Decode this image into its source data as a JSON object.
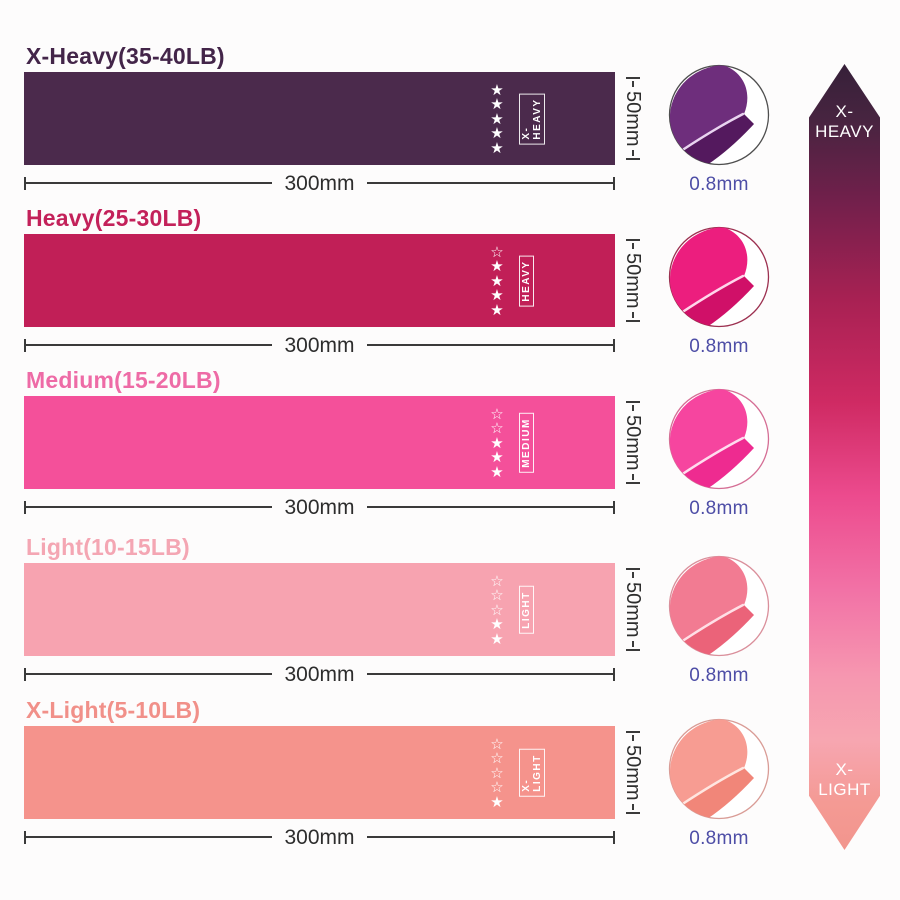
{
  "page": {
    "background_color": "#fdfcfc",
    "dimension_text_color": "#2d2d2d",
    "thickness_text_color": "#4d4da6"
  },
  "bands": [
    {
      "title": "X-Heavy(35-40LB)",
      "label": "X-HEAVY",
      "stars": "★\n★\n★\n★\n★",
      "stars_filled": 5,
      "width_label": "300mm",
      "height_label": "50mm",
      "thickness_label": "0.8mm",
      "band_color": "#4b2a4c",
      "title_color": "#432549",
      "swatch": {
        "main": "#6e2e7c",
        "under": "#54195e",
        "edge": "#e9d4f0",
        "ring": "#4e4e4e"
      }
    },
    {
      "title": "Heavy(25-30LB)",
      "label": "HEAVY",
      "stars": "☆\n★\n★\n★\n★",
      "stars_filled": 4,
      "width_label": "300mm",
      "height_label": "50mm",
      "thickness_label": "0.8mm",
      "band_color": "#c11f57",
      "title_color": "#c3215a",
      "swatch": {
        "main": "#ec1e7e",
        "under": "#d01068",
        "edge": "#ffd6eb",
        "ring": "#9c3050"
      }
    },
    {
      "title": "Medium(15-20LB)",
      "label": "MEDIUM",
      "stars": "☆\n☆\n★\n★\n★",
      "stars_filled": 3,
      "width_label": "300mm",
      "height_label": "50mm",
      "thickness_label": "0.8mm",
      "band_color": "#f4509a",
      "title_color": "#ee6ba6",
      "swatch": {
        "main": "#f6459f",
        "under": "#ee2b90",
        "edge": "#ffdcee",
        "ring": "#d56e95"
      }
    },
    {
      "title": "Light(10-15LB)",
      "label": "LIGHT",
      "stars": "☆\n☆\n☆\n★\n★",
      "stars_filled": 2,
      "width_label": "300mm",
      "height_label": "50mm",
      "thickness_label": "0.8mm",
      "band_color": "#f7a3b0",
      "title_color": "#f4a6b3",
      "swatch": {
        "main": "#f27b92",
        "under": "#eb6379",
        "edge": "#ffdfe6",
        "ring": "#da8f9b"
      }
    },
    {
      "title": "X-Light(5-10LB)",
      "label": "X-LIGHT",
      "stars": "☆\n☆\n☆\n☆\n★",
      "stars_filled": 1,
      "width_label": "300mm",
      "height_label": "50mm",
      "thickness_label": "0.8mm",
      "band_color": "#f5938c",
      "title_color": "#f19089",
      "swatch": {
        "main": "#f79c92",
        "under": "#f18679",
        "edge": "#ffe6e0",
        "ring": "#d99c96"
      }
    }
  ],
  "arrow": {
    "top_label": "X-\nHEAVY",
    "bottom_label": "X-\nLIGHT",
    "gradient_colors": [
      "#362039",
      "#70204b",
      "#a82153",
      "#cf2a63",
      "#ec4b8e",
      "#f272a6",
      "#f697b0",
      "#f49a94",
      "#f2958d"
    ]
  }
}
